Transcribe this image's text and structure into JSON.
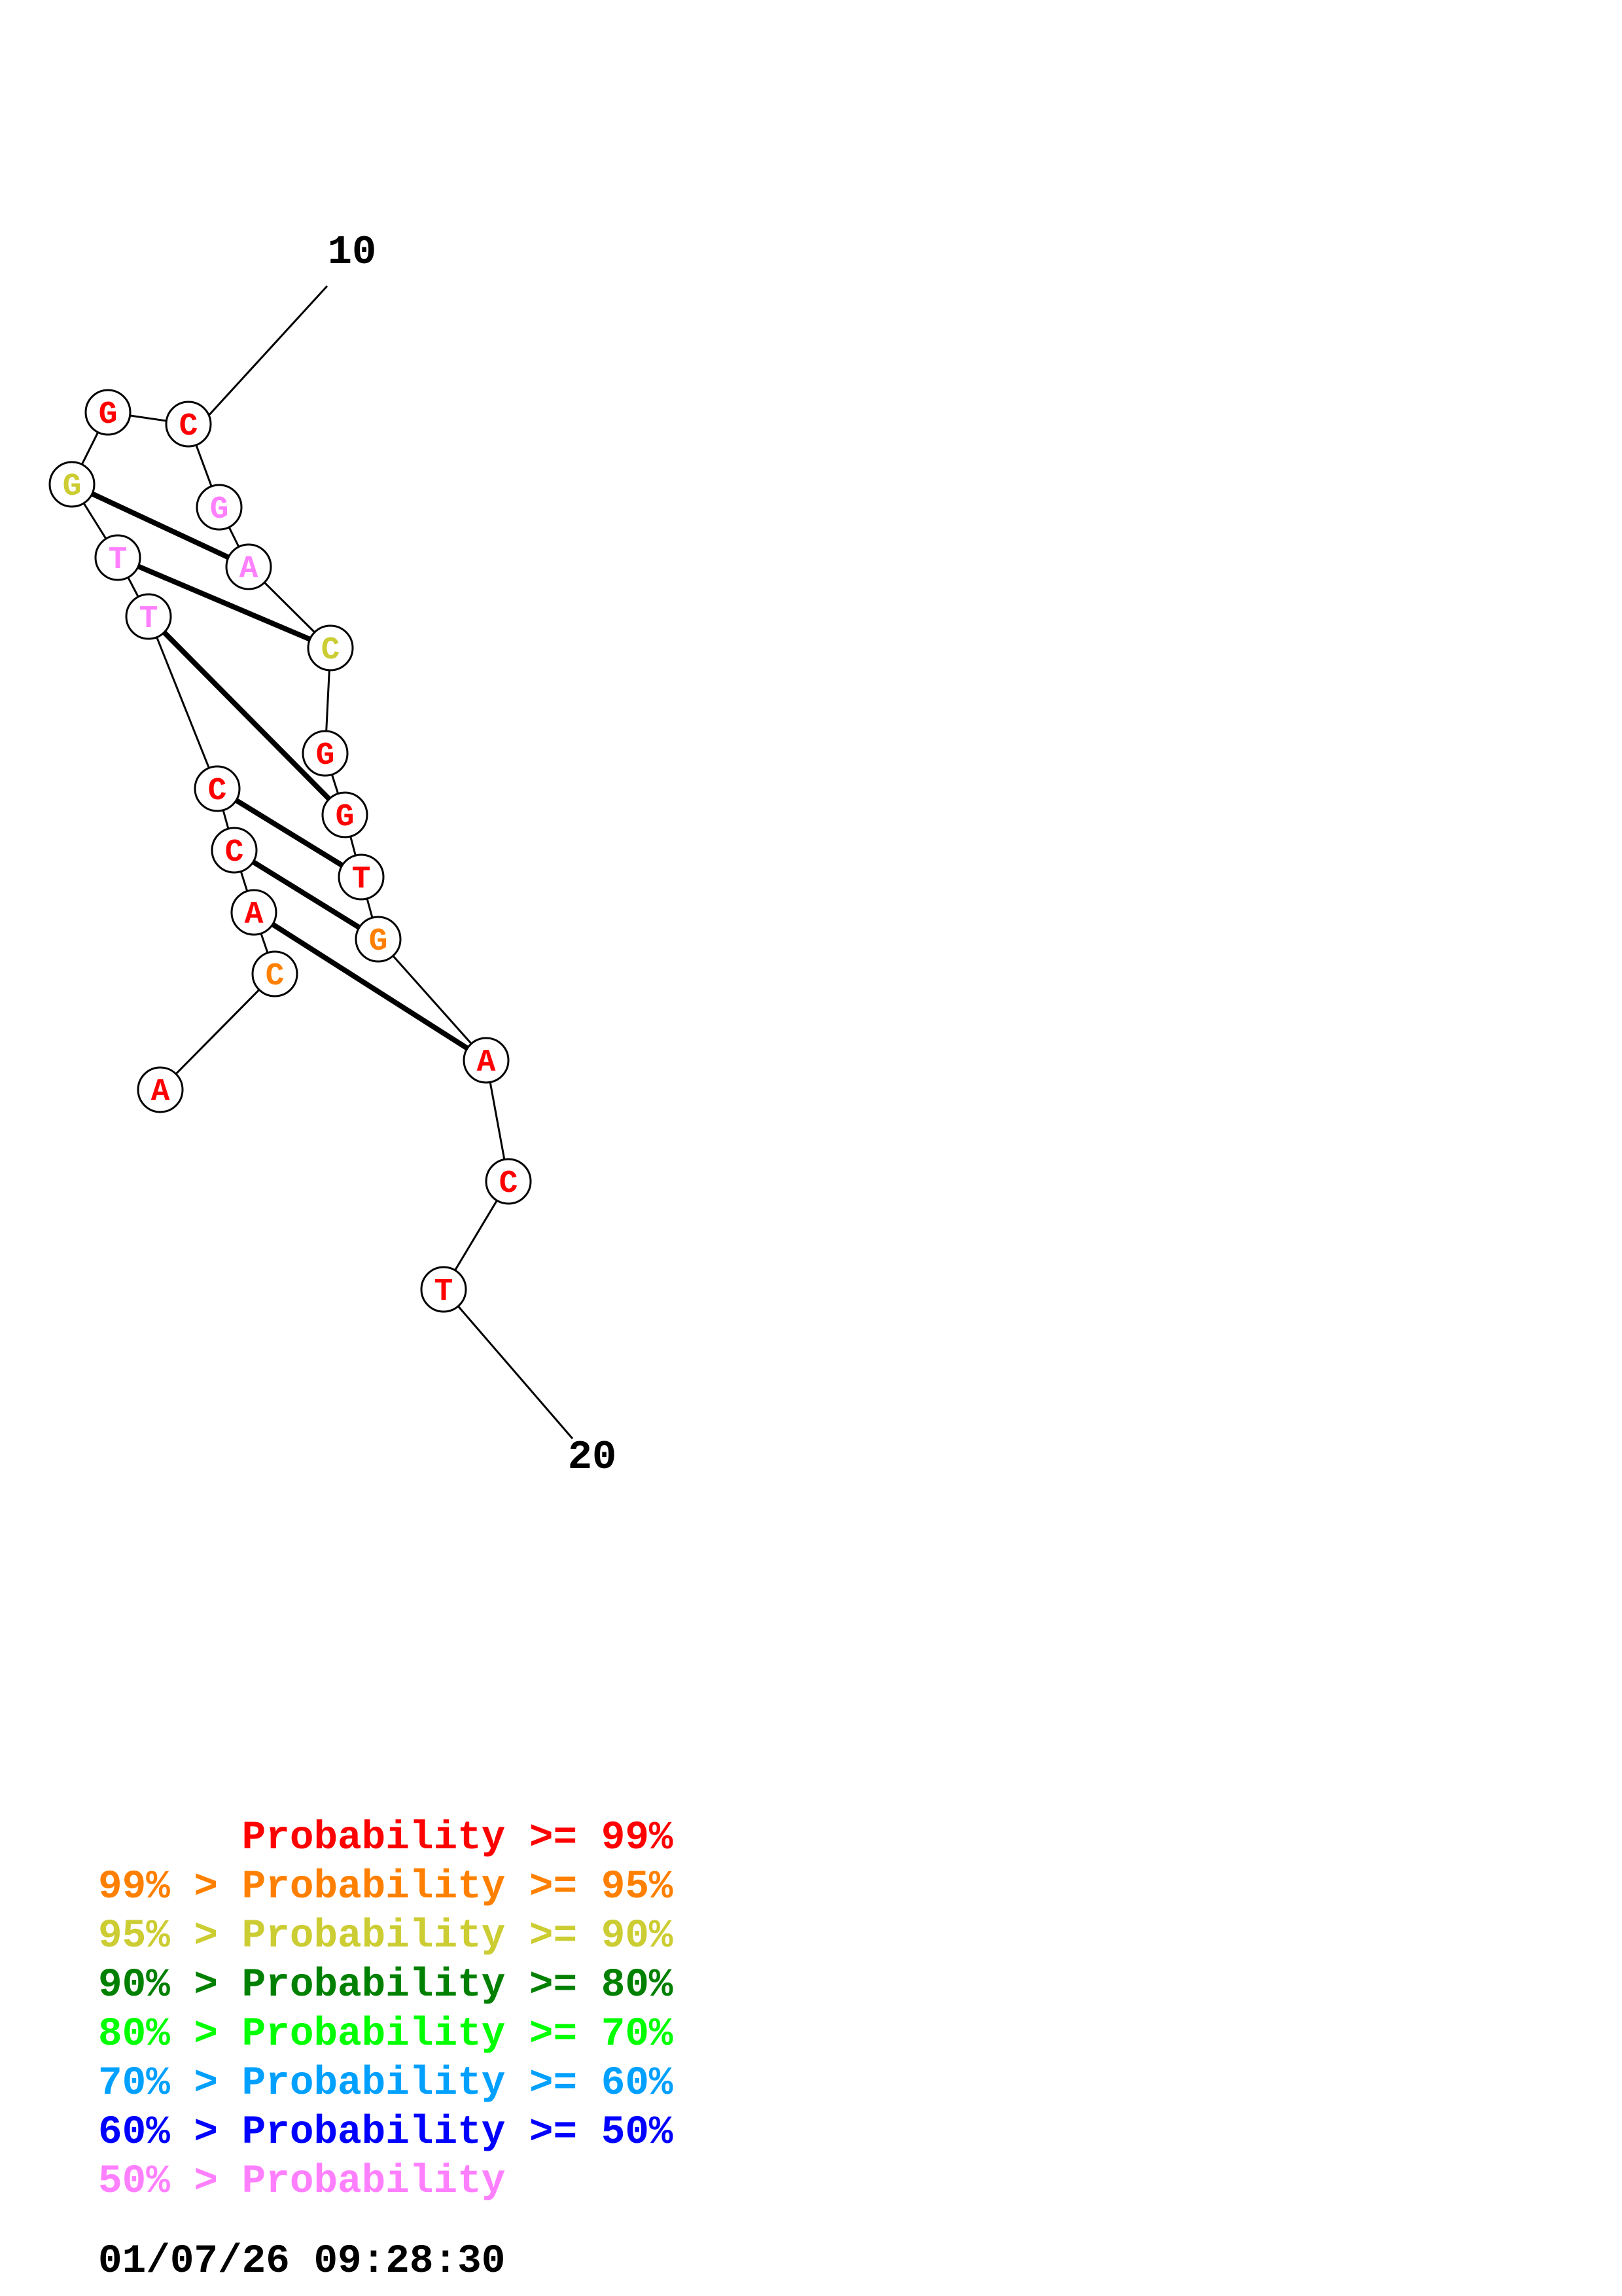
{
  "structure": {
    "numbers": [
      "10",
      "20"
    ],
    "nucleotides": [
      {
        "base": "A",
        "color": "#ff0000"
      },
      {
        "base": "C",
        "color": "#ff8000"
      },
      {
        "base": "A",
        "color": "#ff0000"
      },
      {
        "base": "C",
        "color": "#ff0000"
      },
      {
        "base": "C",
        "color": "#ff0000"
      },
      {
        "base": "T",
        "color": "#ff80ff"
      },
      {
        "base": "T",
        "color": "#ff80ff"
      },
      {
        "base": "G",
        "color": "#cccc33"
      },
      {
        "base": "G",
        "color": "#ff0000"
      },
      {
        "base": "C",
        "color": "#ff0000"
      },
      {
        "base": "G",
        "color": "#ff80ff"
      },
      {
        "base": "A",
        "color": "#ff80ff"
      },
      {
        "base": "C",
        "color": "#cccc33"
      },
      {
        "base": "G",
        "color": "#ff0000"
      },
      {
        "base": "G",
        "color": "#ff0000"
      },
      {
        "base": "T",
        "color": "#ff0000"
      },
      {
        "base": "G",
        "color": "#ff8000"
      },
      {
        "base": "A",
        "color": "#ff0000"
      },
      {
        "base": "C",
        "color": "#ff0000"
      },
      {
        "base": "T",
        "color": "#ff0000"
      }
    ],
    "pairs": [
      [
        2,
        17
      ],
      [
        3,
        16
      ],
      [
        4,
        15
      ],
      [
        5,
        14
      ],
      [
        6,
        12
      ],
      [
        7,
        11
      ]
    ]
  },
  "legend": [
    {
      "left": "",
      "right": "Probability >= 99%",
      "color": "#ff0000"
    },
    {
      "left": "99% > ",
      "right": "Probability >= 95%",
      "color": "#ff8000"
    },
    {
      "left": "95% > ",
      "right": "Probability >= 90%",
      "color": "#cccc33"
    },
    {
      "left": "90% > ",
      "right": "Probability >= 80%",
      "color": "#008000"
    },
    {
      "left": "80% > ",
      "right": "Probability >= 70%",
      "color": "#00ff00"
    },
    {
      "left": "70% > ",
      "right": "Probability >= 60%",
      "color": "#00a0ff"
    },
    {
      "left": "60% > ",
      "right": "Probability >= 50%",
      "color": "#0000ff"
    },
    {
      "left": "50% > ",
      "right": "Probability",
      "color": "#ff80ff"
    }
  ],
  "timestamp": "01/07/26 09:28:30"
}
